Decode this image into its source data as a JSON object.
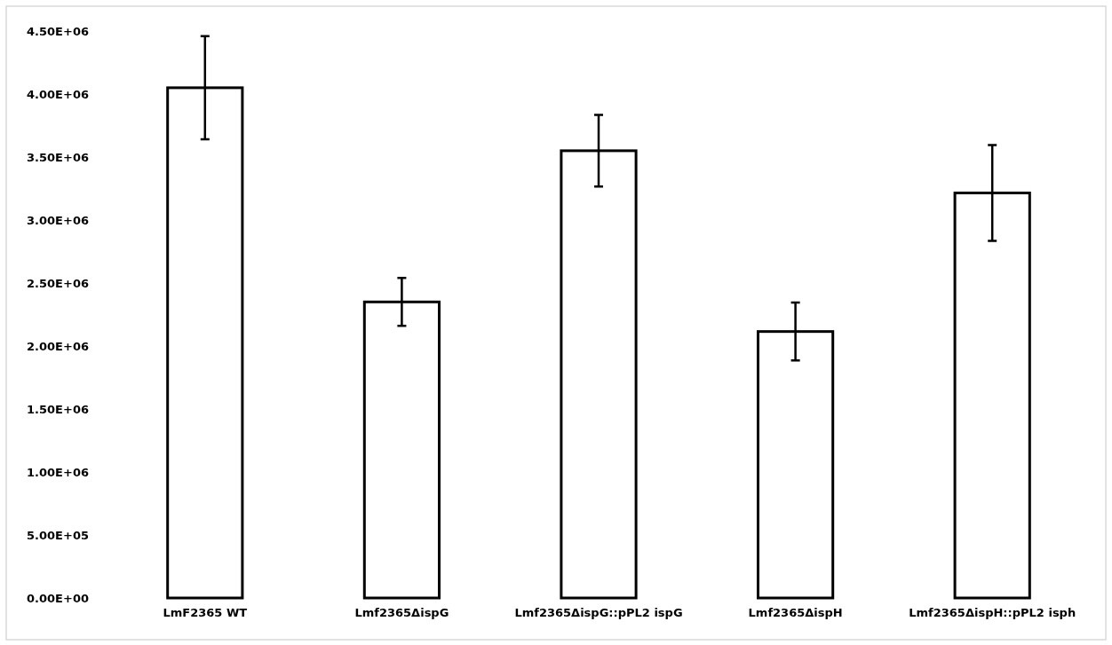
{
  "chart_data": {
    "type": "bar",
    "categories": [
      "LmF2365 WT",
      "Lmf2365ΔispG",
      "Lmf2365ΔispG::pPL2 ispG",
      "Lmf2365ΔispH",
      "Lmf2365ΔispH::pPL2 isph"
    ],
    "values": [
      4050000,
      2350000,
      3550000,
      2115000,
      3215000
    ],
    "errors": [
      410000,
      190000,
      285000,
      230000,
      380000
    ],
    "color": "#ffffff",
    "ylim": [
      0,
      4500000
    ],
    "yticks": [
      {
        "value": 0,
        "label": "0.00E+00"
      },
      {
        "value": 500000,
        "label": "5.00E+05"
      },
      {
        "value": 1000000,
        "label": "1.00E+06"
      },
      {
        "value": 1500000,
        "label": "1.50E+06"
      },
      {
        "value": 2000000,
        "label": "2.00E+06"
      },
      {
        "value": 2500000,
        "label": "2.50E+06"
      },
      {
        "value": 3000000,
        "label": "3.00E+06"
      },
      {
        "value": 3500000,
        "label": "3.50E+06"
      },
      {
        "value": 4000000,
        "label": "4.00E+06"
      },
      {
        "value": 4500000,
        "label": "4.50E+06"
      }
    ],
    "grid": false
  }
}
